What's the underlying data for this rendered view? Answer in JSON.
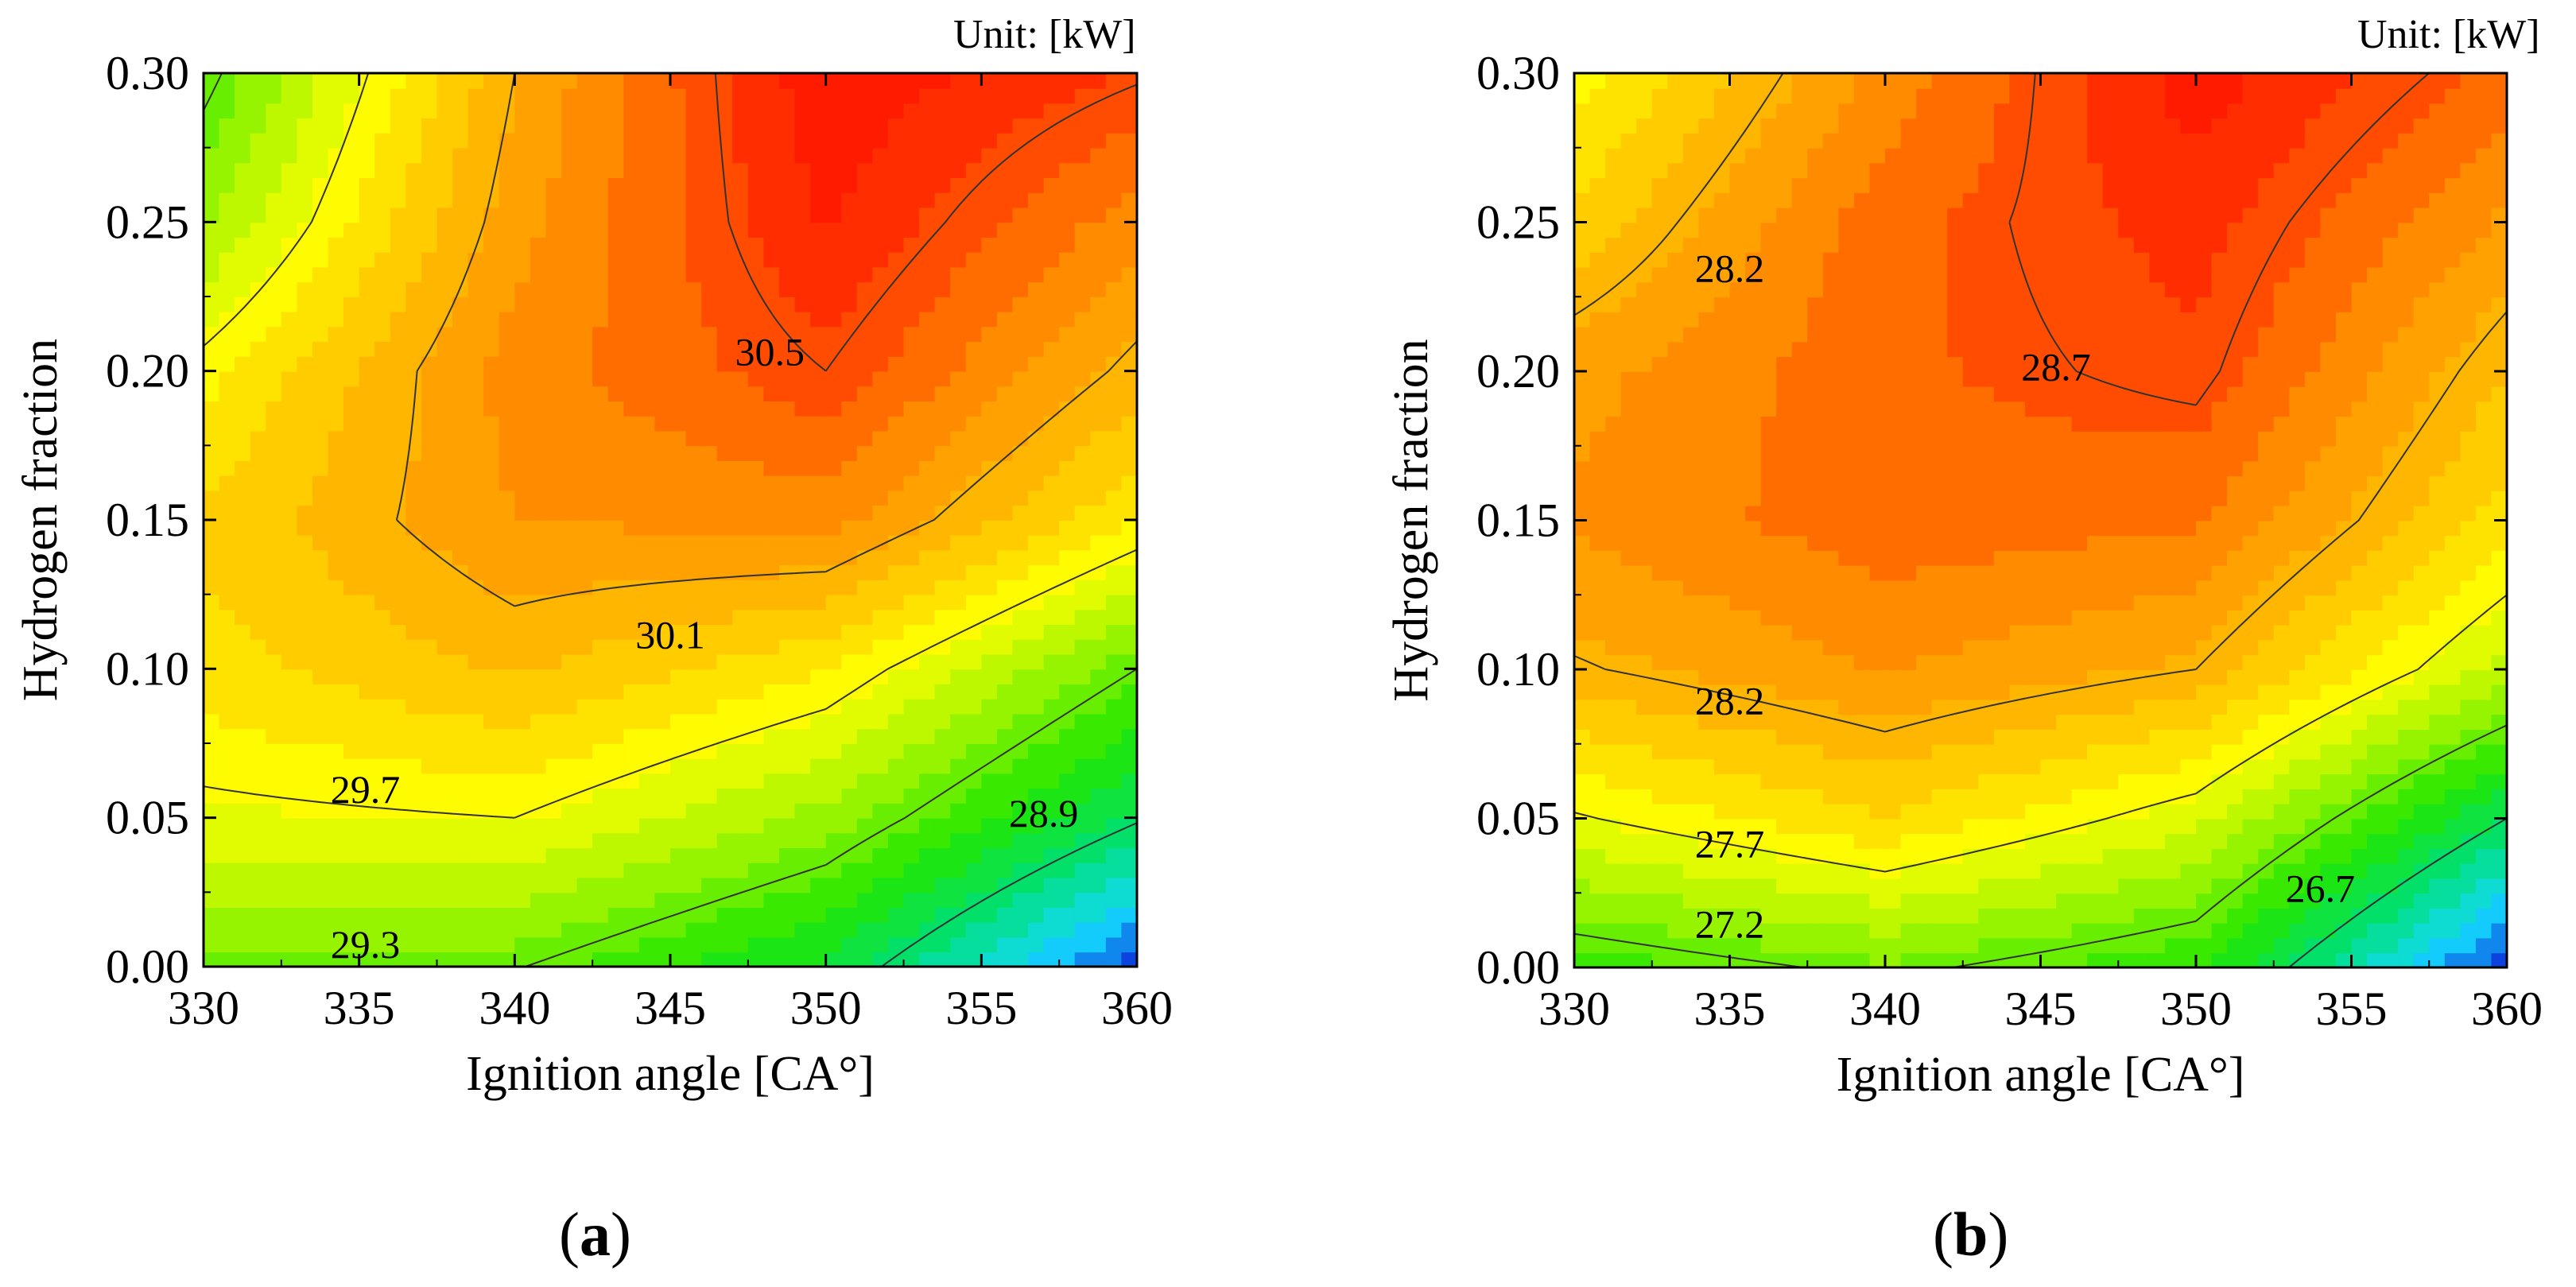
{
  "chart_data": [
    {
      "type": "heatmap",
      "panel_label": "a",
      "unit_label": "Unit: [kW]",
      "xlabel": "Ignition angle [CA°]",
      "ylabel": "Hydrogen fraction",
      "xlim": [
        330,
        360
      ],
      "ylim": [
        0.0,
        0.3
      ],
      "xticks": [
        "330",
        "335",
        "340",
        "345",
        "350",
        "355",
        "360"
      ],
      "yticks": [
        "0.00",
        "0.05",
        "0.10",
        "0.15",
        "0.20",
        "0.25",
        "0.30"
      ],
      "colormap": [
        "#0a1fd6",
        "#14d8ff",
        "#00e070",
        "#22e600",
        "#9ff500",
        "#ffff00",
        "#ffc000",
        "#ff8800",
        "#ff3000",
        "#ff0000"
      ],
      "color_range": [
        28.3,
        30.85
      ],
      "x": [
        330,
        340,
        350,
        360
      ],
      "y": [
        0.0,
        0.05,
        0.1,
        0.15,
        0.2,
        0.25,
        0.3
      ],
      "z": [
        [
          29.34,
          29.31,
          29.02,
          28.35
        ],
        [
          29.66,
          29.7,
          29.43,
          28.92
        ],
        [
          29.85,
          30.02,
          29.8,
          29.3
        ],
        [
          29.92,
          30.21,
          30.26,
          29.8
        ],
        [
          29.75,
          30.26,
          30.5,
          30.06
        ],
        [
          29.45,
          30.17,
          30.65,
          30.26
        ],
        [
          29.25,
          30.1,
          30.72,
          30.52
        ]
      ],
      "contour_labels": [
        {
          "text": "30.5",
          "x": 348.2,
          "y": 0.205
        },
        {
          "text": "30.1",
          "x": 345.0,
          "y": 0.11
        },
        {
          "text": "29.7",
          "x": 335.2,
          "y": 0.058
        },
        {
          "text": "29.3",
          "x": 335.2,
          "y": 0.006
        },
        {
          "text": "28.9",
          "x": 357.0,
          "y": 0.05
        }
      ]
    },
    {
      "type": "heatmap",
      "panel_label": "b",
      "unit_label": "Unit: [kW]",
      "xlabel": "Ignition angle [CA°]",
      "ylabel": "Hydrogen fraction",
      "xlim": [
        330,
        360
      ],
      "ylim": [
        0.0,
        0.3
      ],
      "xticks": [
        "330",
        "335",
        "340",
        "345",
        "350",
        "355",
        "360"
      ],
      "yticks": [
        "0.00",
        "0.05",
        "0.10",
        "0.15",
        "0.20",
        "0.25",
        "0.30"
      ],
      "colormap": [
        "#0a1fd6",
        "#14d8ff",
        "#00e070",
        "#22e600",
        "#9ff500",
        "#ffff00",
        "#ffc000",
        "#ff8800",
        "#ff3000",
        "#ff0000"
      ],
      "color_range": [
        25.9,
        29.2
      ],
      "x": [
        330,
        340,
        350,
        360
      ],
      "y": [
        0.0,
        0.05,
        0.1,
        0.15,
        0.2,
        0.25,
        0.3
      ],
      "z": [
        [
          27.06,
          27.25,
          27.02,
          25.95
        ],
        [
          27.68,
          27.95,
          27.6,
          26.7
        ],
        [
          28.18,
          28.38,
          28.2,
          27.5
        ],
        [
          28.4,
          28.6,
          28.53,
          27.9
        ],
        [
          28.32,
          28.62,
          28.75,
          28.1
        ],
        [
          28.0,
          28.6,
          28.85,
          28.35
        ],
        [
          27.75,
          28.42,
          29.0,
          28.6
        ]
      ],
      "contour_labels": [
        {
          "text": "28.2",
          "x": 335.0,
          "y": 0.233
        },
        {
          "text": "28.7",
          "x": 345.5,
          "y": 0.2
        },
        {
          "text": "28.2",
          "x": 335.0,
          "y": 0.088
        },
        {
          "text": "27.7",
          "x": 335.0,
          "y": 0.04
        },
        {
          "text": "27.2",
          "x": 335.0,
          "y": 0.013
        },
        {
          "text": "26.7",
          "x": 354.0,
          "y": 0.025
        }
      ]
    }
  ]
}
